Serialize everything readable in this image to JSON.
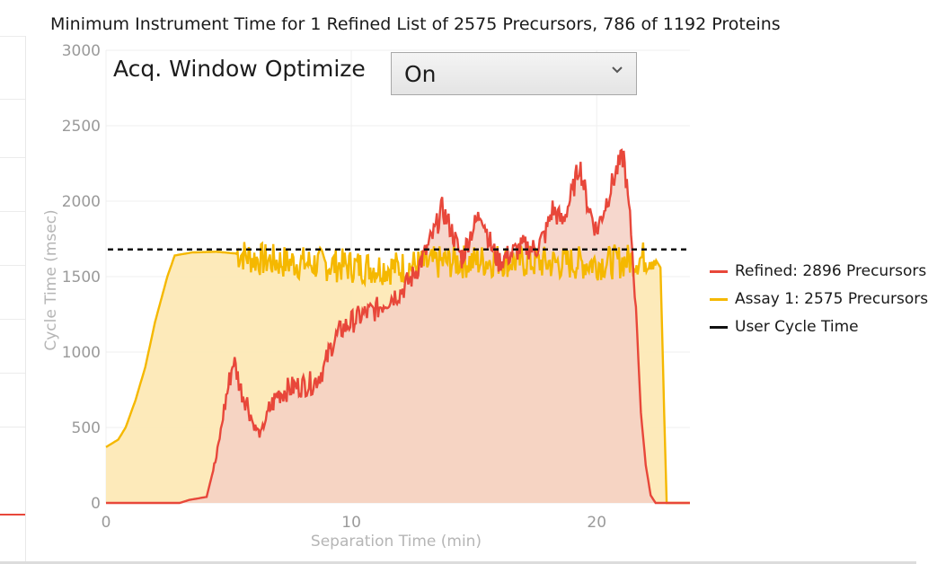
{
  "chart_data": {
    "type": "area",
    "title": "Minimum Instrument Time for 1 Refined List of 2575 Precursors, 786 of 1192 Proteins",
    "xlabel": "Separation Time (min)",
    "ylabel": "Cycle Time (msec)",
    "xlim": [
      0,
      23.8
    ],
    "ylim": [
      0,
      3000
    ],
    "xticks": [
      0,
      10,
      20
    ],
    "yticks": [
      0,
      500,
      1000,
      1500,
      2000,
      2500,
      3000
    ],
    "grid": true,
    "legend_position": "right",
    "series": [
      {
        "name": "Refined: 2896 Precursors",
        "color": "#e8473a",
        "fill": "#f5d0c4",
        "points": [
          [
            0,
            0
          ],
          [
            3.0,
            0
          ],
          [
            3.4,
            20
          ],
          [
            4.1,
            40
          ],
          [
            4.5,
            300
          ],
          [
            4.9,
            700
          ],
          [
            5.2,
            950
          ],
          [
            5.5,
            750
          ],
          [
            5.8,
            650
          ],
          [
            6.0,
            520
          ],
          [
            6.3,
            450
          ],
          [
            6.6,
            600
          ],
          [
            7.0,
            720
          ],
          [
            7.5,
            760
          ],
          [
            8.0,
            780
          ],
          [
            8.5,
            800
          ],
          [
            8.9,
            900
          ],
          [
            9.2,
            1050
          ],
          [
            9.6,
            1150
          ],
          [
            10.0,
            1200
          ],
          [
            10.5,
            1250
          ],
          [
            11.0,
            1280
          ],
          [
            11.5,
            1350
          ],
          [
            12.0,
            1400
          ],
          [
            12.5,
            1500
          ],
          [
            13.0,
            1650
          ],
          [
            13.4,
            1800
          ],
          [
            13.7,
            1950
          ],
          [
            14.1,
            1800
          ],
          [
            14.5,
            1620
          ],
          [
            14.9,
            1800
          ],
          [
            15.3,
            1930
          ],
          [
            15.7,
            1700
          ],
          [
            16.0,
            1600
          ],
          [
            16.5,
            1650
          ],
          [
            17.0,
            1700
          ],
          [
            17.5,
            1680
          ],
          [
            17.9,
            1780
          ],
          [
            18.2,
            1950
          ],
          [
            18.6,
            1860
          ],
          [
            19.0,
            2050
          ],
          [
            19.3,
            2250
          ],
          [
            19.6,
            2000
          ],
          [
            20.0,
            1800
          ],
          [
            20.4,
            2000
          ],
          [
            20.8,
            2200
          ],
          [
            21.1,
            2300
          ],
          [
            21.4,
            1800
          ],
          [
            21.6,
            1300
          ],
          [
            21.8,
            600
          ],
          [
            22.0,
            250
          ],
          [
            22.2,
            50
          ],
          [
            22.4,
            0
          ],
          [
            23.8,
            0
          ]
        ]
      },
      {
        "name": "Assay 1: 2575 Precursors",
        "color": "#f5b800",
        "fill": "#fde8b2",
        "points": [
          [
            0,
            370
          ],
          [
            0.5,
            420
          ],
          [
            0.8,
            500
          ],
          [
            1.2,
            680
          ],
          [
            1.6,
            900
          ],
          [
            2.0,
            1200
          ],
          [
            2.5,
            1500
          ],
          [
            2.8,
            1640
          ],
          [
            3.5,
            1660
          ],
          [
            4.5,
            1665
          ],
          [
            5.5,
            1650
          ],
          [
            6.0,
            1620
          ],
          [
            7.0,
            1600
          ],
          [
            8.0,
            1590
          ],
          [
            9.0,
            1580
          ],
          [
            10.0,
            1570
          ],
          [
            11.0,
            1560
          ],
          [
            12.0,
            1560
          ],
          [
            13.0,
            1580
          ],
          [
            14.0,
            1600
          ],
          [
            15.0,
            1600
          ],
          [
            16.0,
            1610
          ],
          [
            17.0,
            1600
          ],
          [
            18.0,
            1590
          ],
          [
            19.0,
            1590
          ],
          [
            20.0,
            1590
          ],
          [
            21.0,
            1600
          ],
          [
            21.8,
            1620
          ],
          [
            22.3,
            1640
          ],
          [
            22.6,
            1560
          ],
          [
            22.75,
            600
          ],
          [
            22.85,
            0
          ],
          [
            23.8,
            0
          ]
        ]
      },
      {
        "name": "User Cycle Time",
        "color": "#111111",
        "style": "dashed",
        "value": 1680
      }
    ]
  },
  "controls": {
    "acq_label": "Acq. Window Optimize",
    "acq_value": "On"
  },
  "icons": {
    "dropdown": "chevron-down-icon"
  }
}
